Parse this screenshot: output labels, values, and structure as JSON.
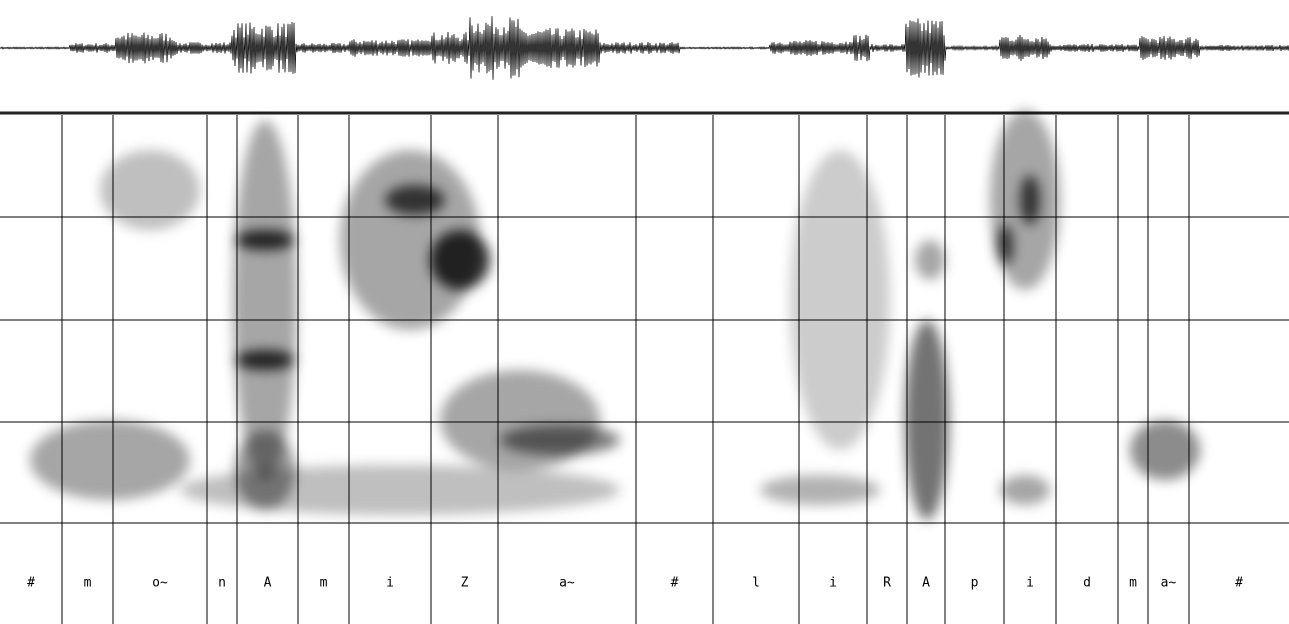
{
  "segments": [
    "#",
    "m",
    "o~",
    "n",
    "A",
    "m",
    "i",
    "Z",
    "a~",
    "#",
    "l",
    "i",
    "R",
    "A",
    "p",
    "i",
    "d",
    "m",
    "a~",
    "#"
  ]
}
